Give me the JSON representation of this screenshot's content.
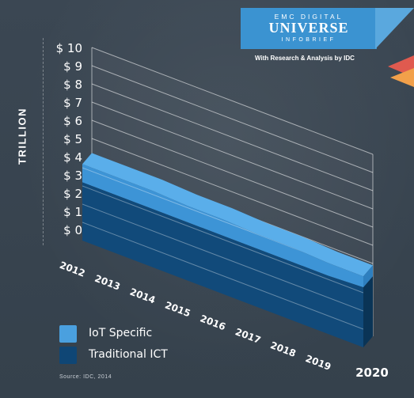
{
  "chart_data": {
    "type": "area",
    "ylabel": "TRILLION",
    "y_ticks": [
      "$ 0",
      "$ 1",
      "$ 2",
      "$ 3",
      "$ 4",
      "$ 5",
      "$ 6",
      "$ 7",
      "$ 8",
      "$ 9",
      "$ 10"
    ],
    "ylim": [
      0,
      10
    ],
    "x": [
      "2012",
      "2013",
      "2014",
      "2015",
      "2016",
      "2017",
      "2018",
      "2019",
      "2020"
    ],
    "series": [
      {
        "name": "Traditional ICT",
        "color": "#114a7a",
        "values": [
          3.2,
          3.2,
          3.2,
          3.2,
          3.2,
          3.2,
          3.2,
          3.2,
          3.3
        ]
      },
      {
        "name": "IoT Specific",
        "color": "#3d94d6",
        "values": [
          1.0,
          1.0,
          1.0,
          0.9,
          0.9,
          0.8,
          0.8,
          0.7,
          0.6
        ]
      }
    ],
    "grid": true,
    "legend_position": "bottom-left"
  },
  "legend": {
    "iot": "IoT Specific",
    "ict": "Traditional ICT"
  },
  "banner": {
    "top": "EMC DIGITAL",
    "main": "UNIVERSE",
    "sub": "INFOBRIEF",
    "credit": "With Research & Analysis by IDC"
  },
  "source": "Source: IDC, 2014"
}
